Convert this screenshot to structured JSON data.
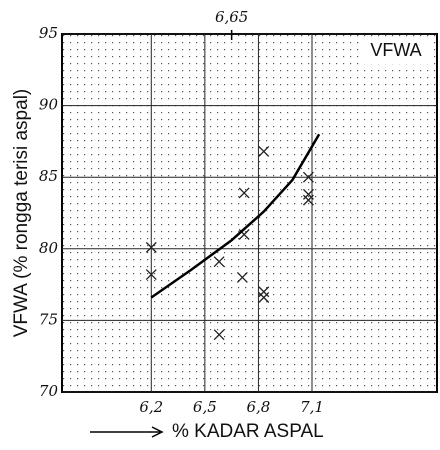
{
  "chart_data": {
    "type": "scatter",
    "title": "VFWA",
    "y_label": "VFWA (% rongga terisi aspal)",
    "x_label": "% KADAR ASPAL",
    "xlim": [
      5.7,
      7.8
    ],
    "ylim": [
      70,
      95
    ],
    "xticks": [
      {
        "value": 6.2,
        "label": "6,2"
      },
      {
        "value": 6.5,
        "label": "6,5"
      },
      {
        "value": 6.8,
        "label": "6,8"
      },
      {
        "value": 7.1,
        "label": "7,1"
      }
    ],
    "top_ticks": [
      {
        "value": 6.65,
        "label": "6,65"
      }
    ],
    "yticks": [
      70,
      75,
      80,
      85,
      90,
      95
    ],
    "grid": true,
    "points": {
      "color": "#222",
      "x": [
        6.2,
        6.2,
        6.58,
        6.58,
        6.72,
        6.72,
        6.71,
        6.83,
        6.83,
        6.83,
        7.08,
        7.08,
        7.08
      ],
      "y": [
        80.1,
        78.2,
        79.1,
        74.0,
        83.9,
        81.0,
        78.0,
        86.8,
        76.6,
        77.0,
        85.0,
        83.8,
        83.4
      ]
    },
    "curve": {
      "color": "#000",
      "x": [
        6.2,
        6.42,
        6.65,
        6.83,
        6.99,
        7.14
      ],
      "y": [
        76.6,
        78.5,
        80.6,
        82.6,
        84.8,
        88.0
      ]
    }
  }
}
